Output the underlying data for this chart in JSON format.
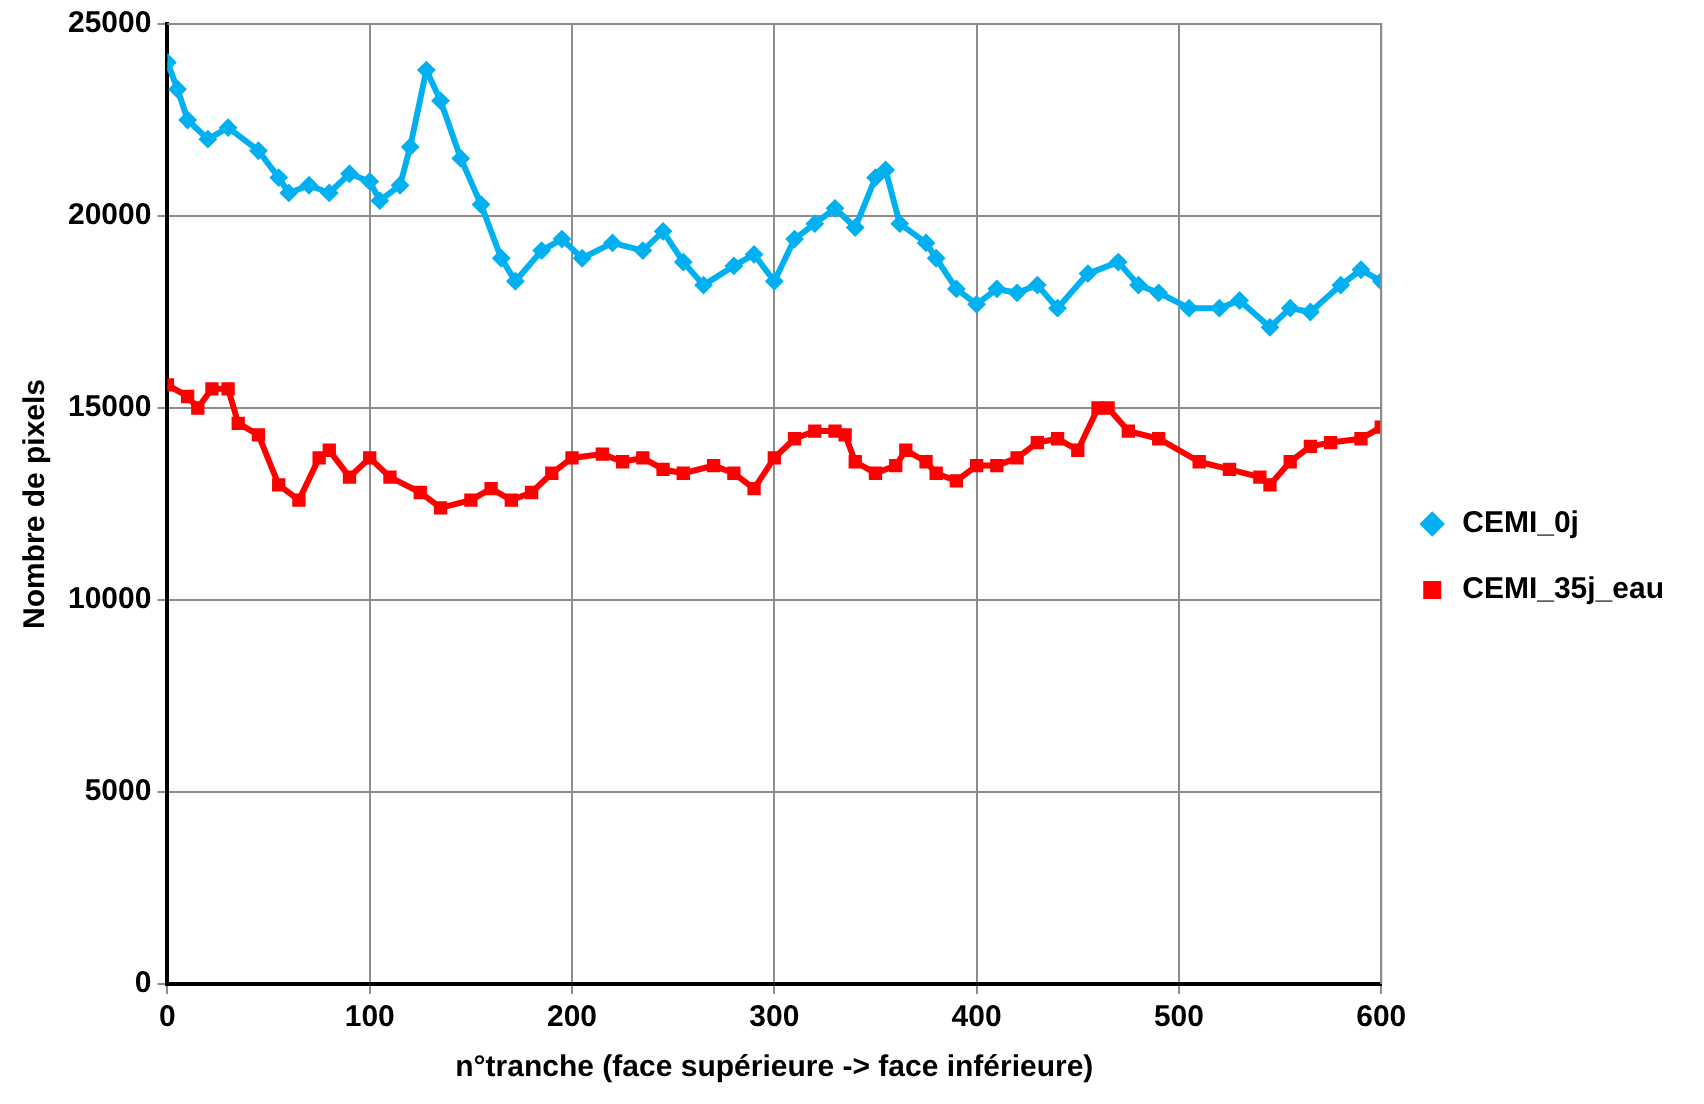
{
  "chart_data": {
    "type": "line",
    "xlabel": "n°tranche (face supérieure -> face inférieure)",
    "ylabel": "Nombre de pixels",
    "xlim": [
      0,
      600
    ],
    "xticks": [
      0,
      100,
      200,
      300,
      400,
      500,
      600
    ],
    "ylim": [
      0,
      25000
    ],
    "yticks": [
      0,
      5000,
      10000,
      15000,
      20000,
      25000
    ],
    "grid": true,
    "legend": "right",
    "series": [
      {
        "name": "CEMI_0j",
        "color": "#00b0f0",
        "marker": "diamond",
        "x": [
          0,
          5,
          10,
          20,
          30,
          45,
          55,
          60,
          70,
          80,
          90,
          100,
          105,
          115,
          120,
          128,
          135,
          145,
          155,
          165,
          172,
          185,
          195,
          205,
          220,
          235,
          245,
          255,
          265,
          280,
          290,
          300,
          310,
          320,
          330,
          340,
          350,
          355,
          362,
          375,
          380,
          390,
          400,
          410,
          420,
          430,
          440,
          455,
          470,
          480,
          490,
          505,
          520,
          530,
          545,
          555,
          565,
          580,
          590,
          600
        ],
        "values": [
          24000,
          23300,
          22500,
          22000,
          22300,
          21700,
          21000,
          20600,
          20800,
          20600,
          21100,
          20900,
          20400,
          20800,
          21800,
          23800,
          23000,
          21500,
          20300,
          18900,
          18300,
          19100,
          19400,
          18900,
          19300,
          19100,
          19600,
          18800,
          18200,
          18700,
          19000,
          18300,
          19400,
          19800,
          20200,
          19700,
          21000,
          21200,
          19800,
          19300,
          18900,
          18100,
          17700,
          18100,
          18000,
          18200,
          17600,
          18500,
          18800,
          18200,
          18000,
          17600,
          17600,
          17800,
          17100,
          17600,
          17500,
          18200,
          18600,
          18300
        ]
      },
      {
        "name": "CEMI_35j_eau",
        "color": "#ff0000",
        "marker": "square",
        "x": [
          0,
          10,
          15,
          22,
          30,
          35,
          45,
          55,
          65,
          75,
          80,
          90,
          100,
          110,
          125,
          135,
          150,
          160,
          170,
          180,
          190,
          200,
          215,
          225,
          235,
          245,
          255,
          270,
          280,
          290,
          300,
          310,
          320,
          330,
          335,
          340,
          350,
          360,
          365,
          375,
          380,
          390,
          400,
          410,
          420,
          430,
          440,
          450,
          460,
          465,
          475,
          490,
          510,
          525,
          540,
          545,
          555,
          565,
          575,
          590,
          600
        ],
        "values": [
          15600,
          15300,
          15000,
          15500,
          15500,
          14600,
          14300,
          13000,
          12600,
          13700,
          13900,
          13200,
          13700,
          13200,
          12800,
          12400,
          12600,
          12900,
          12600,
          12800,
          13300,
          13700,
          13800,
          13600,
          13700,
          13400,
          13300,
          13500,
          13300,
          12900,
          13700,
          14200,
          14400,
          14400,
          14300,
          13600,
          13300,
          13500,
          13900,
          13600,
          13300,
          13100,
          13500,
          13500,
          13700,
          14100,
          14200,
          13900,
          15000,
          15000,
          14400,
          14200,
          13600,
          13400,
          13200,
          13000,
          13600,
          14000,
          14100,
          14200,
          14500
        ]
      }
    ]
  }
}
